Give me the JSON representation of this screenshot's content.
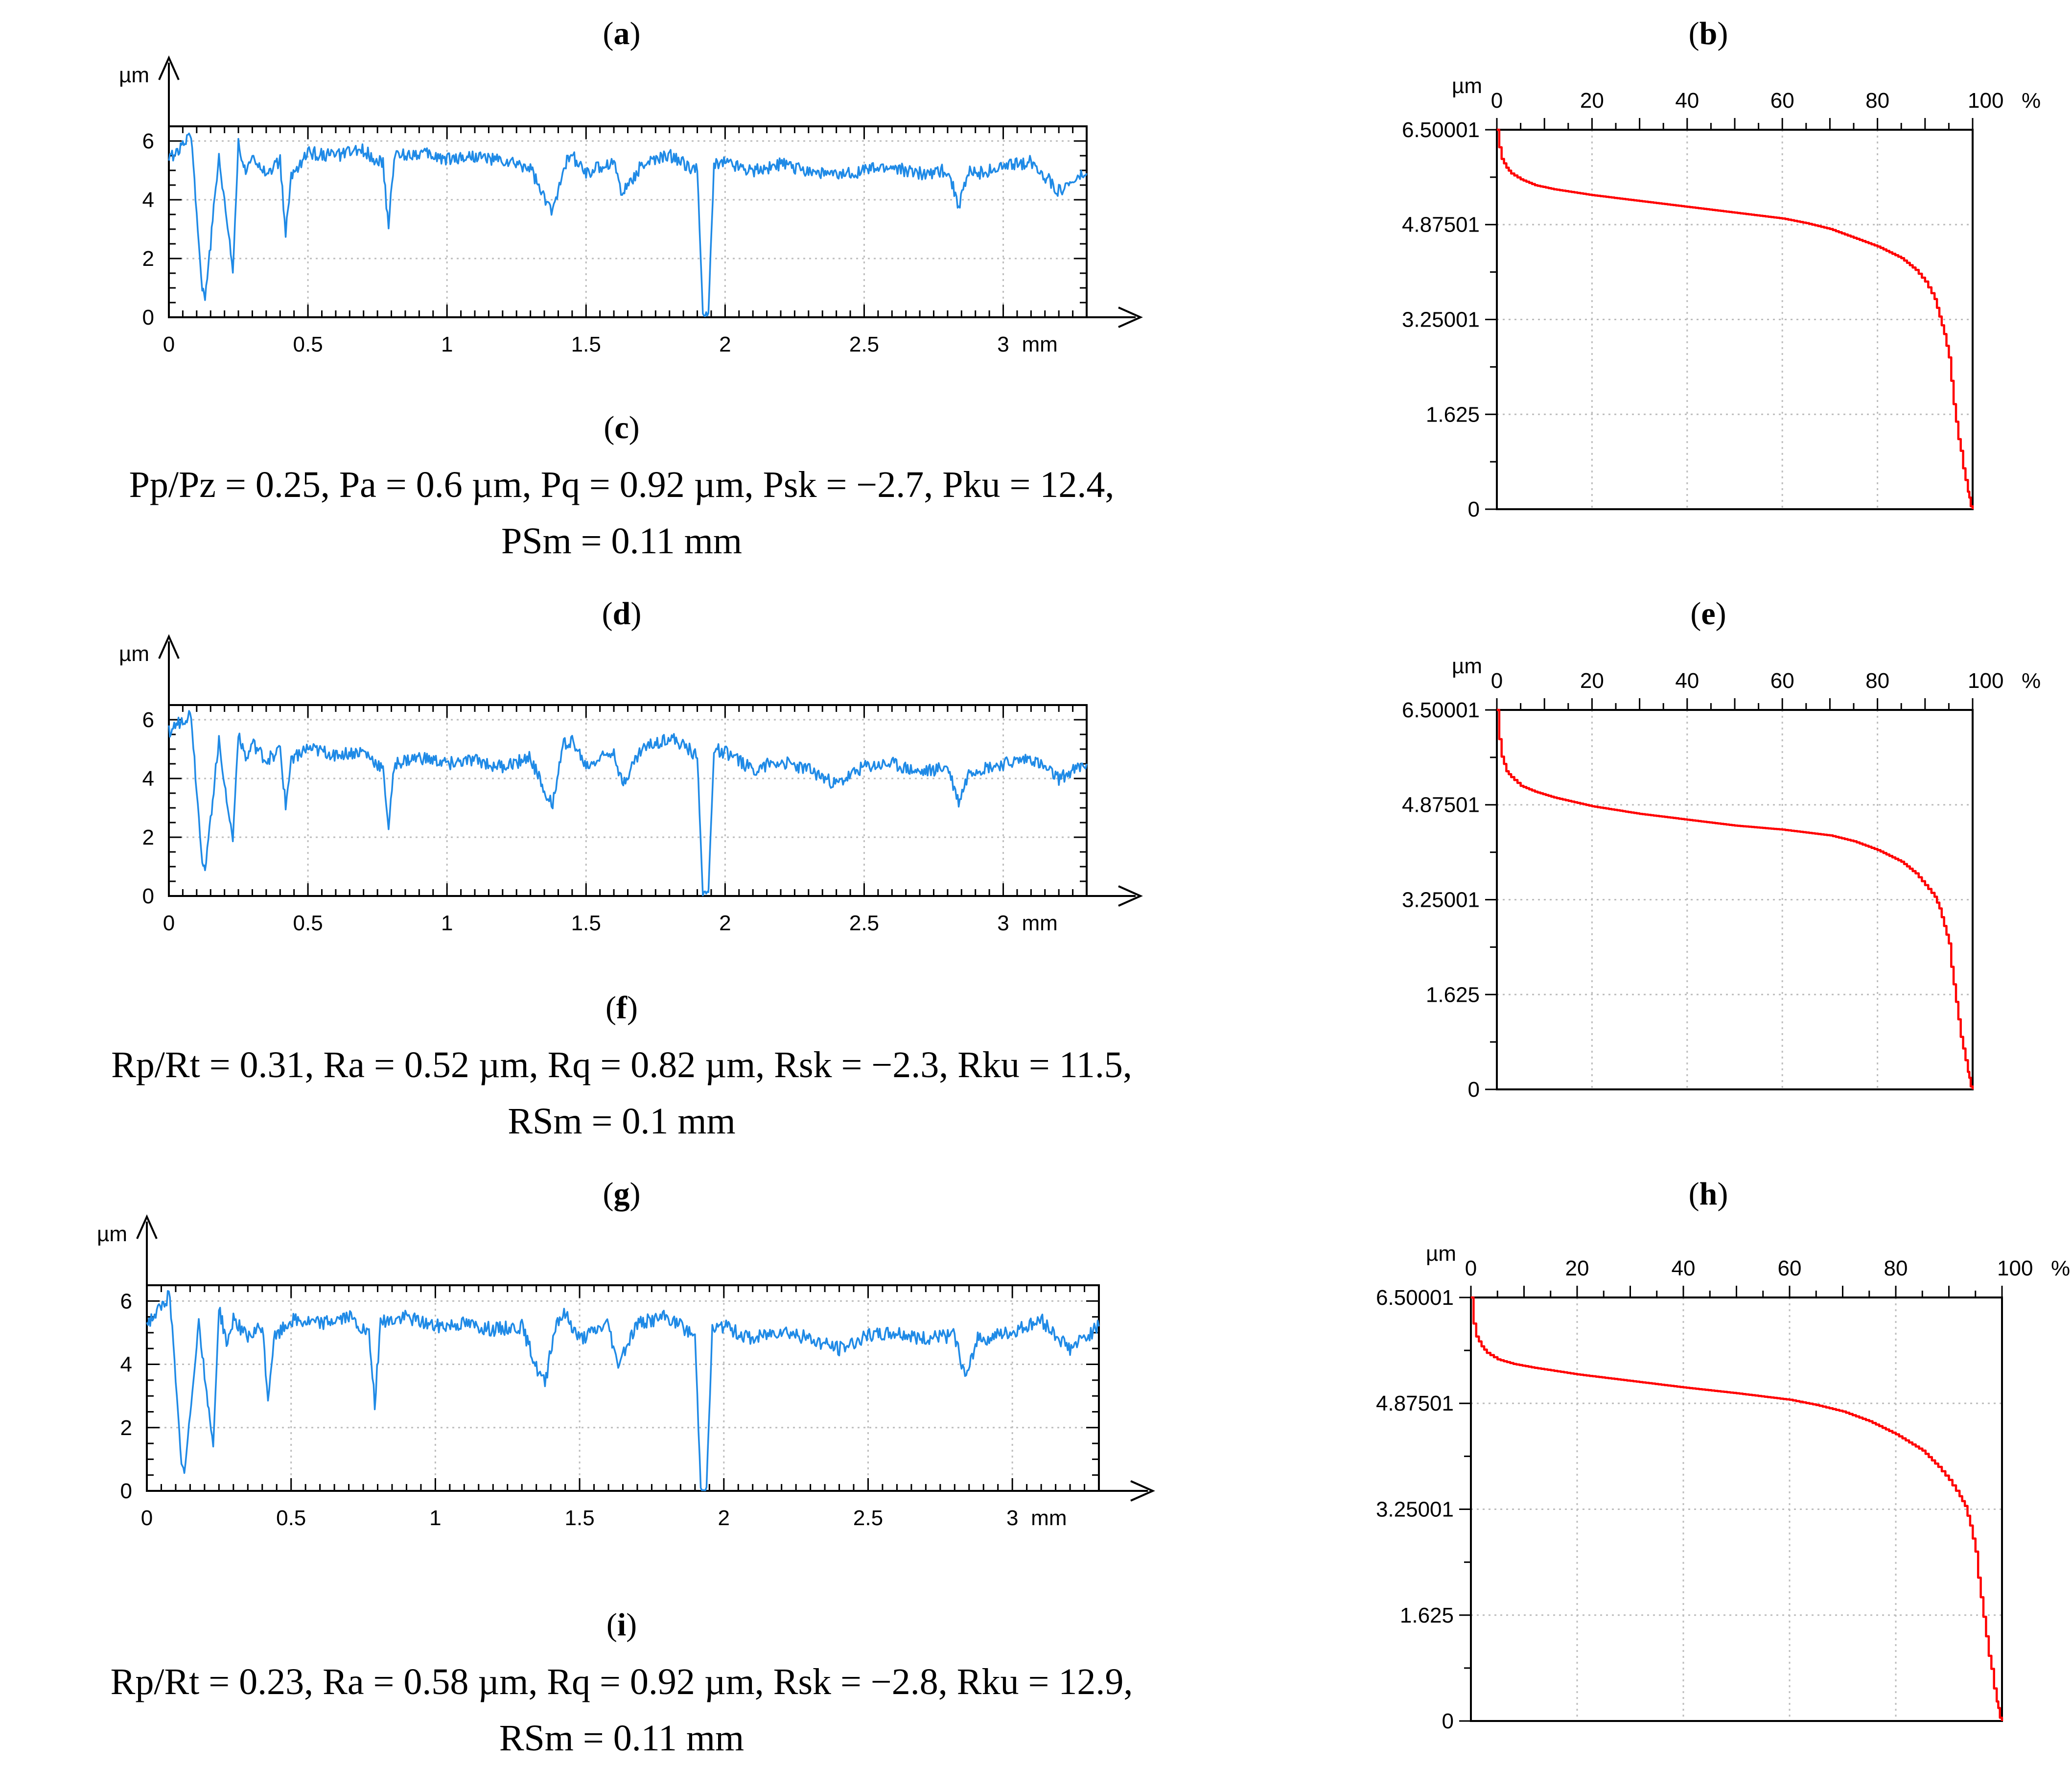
{
  "colors": {
    "profile": "#1f8ae6",
    "bearing": "#ff0000",
    "grid": "#bdbdbd",
    "axis": "#000000"
  },
  "panels": {
    "a": "a",
    "b": "b",
    "c": "c",
    "d": "d",
    "e": "e",
    "f": "f",
    "g": "g",
    "h": "h",
    "i": "i"
  },
  "stats": {
    "c": {
      "line1": "Pp/Pz = 0.25, Pa = 0.6 µm, Pq = 0.92 µm, Psk = −2.7, Pku = 12.4,",
      "line2": "PSm = 0.11 mm"
    },
    "f": {
      "line1": "Rp/Rt = 0.31, Ra = 0.52 µm, Rq = 0.82 µm, Rsk = −2.3, Rku = 11.5,",
      "line2": "RSm = 0.1 mm"
    },
    "i": {
      "line1": "Rp/Rt = 0.23, Ra = 0.58 µm, Rq = 0.92 µm, Rsk = −2.8, Rku = 12.9,",
      "line2": "RSm = 0.11 mm"
    }
  },
  "chart_data": [
    {
      "id": "a",
      "type": "line",
      "title": "",
      "xlabel": "mm",
      "ylabel": "µm",
      "xlim": [
        0,
        3.3
      ],
      "ylim": [
        0,
        6.5
      ],
      "xticks": [
        "0",
        "0.5",
        "1",
        "1.5",
        "2",
        "2.5",
        "3"
      ],
      "yticks": [
        "0",
        "2",
        "4",
        "6"
      ],
      "series": [
        {
          "name": "profile",
          "x": [
            0,
            0.05,
            0.08,
            0.1,
            0.12,
            0.13,
            0.15,
            0.18,
            0.2,
            0.23,
            0.25,
            0.28,
            0.3,
            0.35,
            0.4,
            0.42,
            0.44,
            0.5,
            0.6,
            0.7,
            0.77,
            0.79,
            0.81,
            0.9,
            1.0,
            1.1,
            1.2,
            1.3,
            1.35,
            1.38,
            1.42,
            1.45,
            1.5,
            1.6,
            1.63,
            1.7,
            1.8,
            1.9,
            1.92,
            1.94,
            1.96,
            2.0,
            2.1,
            2.2,
            2.3,
            2.4,
            2.5,
            2.6,
            2.7,
            2.8,
            2.84,
            2.88,
            2.9,
            3.0,
            3.1,
            3.2,
            3.3
          ],
          "y": [
            5.4,
            5.8,
            6.3,
            3.5,
            1.0,
            0.7,
            2.5,
            5.5,
            4.0,
            1.6,
            5.9,
            4.8,
            5.6,
            4.9,
            5.3,
            2.8,
            4.8,
            5.6,
            5.5,
            5.7,
            5.2,
            3.0,
            5.5,
            5.6,
            5.4,
            5.5,
            5.3,
            5.1,
            4.0,
            3.6,
            5.2,
            5.5,
            4.9,
            5.3,
            4.2,
            5.2,
            5.5,
            5.0,
            0.1,
            0.1,
            5.2,
            5.3,
            5.0,
            5.2,
            5.0,
            4.8,
            5.0,
            5.1,
            4.9,
            5.0,
            3.8,
            5.0,
            4.9,
            5.1,
            5.3,
            4.3,
            4.9
          ]
        }
      ]
    },
    {
      "id": "b",
      "type": "line",
      "title": "",
      "xlabel": "%",
      "ylabel": "µm",
      "xlim": [
        0,
        100
      ],
      "ylim": [
        0,
        6.50001
      ],
      "xticks": [
        "0",
        "20",
        "40",
        "60",
        "80",
        "100"
      ],
      "yticks": [
        "0",
        "1.625",
        "3.25001",
        "4.87501",
        "6.50001"
      ],
      "series": [
        {
          "name": "bearing curve",
          "x": [
            0,
            0.5,
            1,
            2,
            3,
            5,
            8,
            12,
            20,
            30,
            40,
            50,
            60,
            65,
            70,
            75,
            80,
            85,
            88,
            90,
            92,
            93,
            94,
            95,
            95.5,
            96,
            96.5,
            97,
            97.5,
            98,
            98.5,
            99,
            99.3,
            99.6,
            100
          ],
          "y": [
            6.5,
            6.2,
            6.0,
            5.85,
            5.75,
            5.65,
            5.55,
            5.48,
            5.38,
            5.28,
            5.18,
            5.08,
            4.98,
            4.9,
            4.8,
            4.65,
            4.5,
            4.3,
            4.1,
            3.9,
            3.6,
            3.3,
            3.0,
            2.6,
            2.2,
            1.8,
            1.5,
            1.2,
            1.0,
            0.7,
            0.5,
            0.3,
            0.2,
            0.05,
            0
          ]
        }
      ]
    },
    {
      "id": "d",
      "type": "line",
      "title": "",
      "xlabel": "mm",
      "ylabel": "µm",
      "xlim": [
        0,
        3.3
      ],
      "ylim": [
        0,
        6.5
      ],
      "xticks": [
        "0",
        "0.5",
        "1",
        "1.5",
        "2",
        "2.5",
        "3"
      ],
      "yticks": [
        "0",
        "2",
        "4",
        "6"
      ],
      "series": [
        {
          "name": "profile",
          "x": [
            0,
            0.05,
            0.08,
            0.1,
            0.12,
            0.13,
            0.15,
            0.18,
            0.2,
            0.23,
            0.25,
            0.28,
            0.3,
            0.35,
            0.4,
            0.42,
            0.44,
            0.5,
            0.6,
            0.7,
            0.77,
            0.79,
            0.81,
            0.9,
            1.0,
            1.1,
            1.2,
            1.3,
            1.35,
            1.38,
            1.42,
            1.45,
            1.5,
            1.6,
            1.63,
            1.7,
            1.8,
            1.9,
            1.92,
            1.94,
            1.96,
            2.0,
            2.1,
            2.2,
            2.3,
            2.4,
            2.5,
            2.6,
            2.7,
            2.8,
            2.84,
            2.88,
            2.9,
            3.0,
            3.1,
            3.2,
            3.3
          ],
          "y": [
            5.6,
            6.0,
            6.2,
            3.6,
            1.2,
            0.9,
            2.6,
            5.4,
            3.8,
            1.9,
            5.6,
            4.6,
            5.2,
            4.6,
            5.0,
            3.0,
            4.7,
            5.0,
            4.8,
            4.9,
            4.3,
            2.3,
            4.5,
            4.7,
            4.5,
            4.6,
            4.4,
            4.7,
            3.6,
            3.2,
            5.2,
            5.3,
            4.4,
            5.0,
            3.8,
            5.0,
            5.4,
            4.8,
            0.1,
            0.1,
            5.0,
            4.9,
            4.3,
            4.6,
            4.3,
            3.8,
            4.4,
            4.5,
            4.2,
            4.4,
            3.2,
            4.3,
            4.3,
            4.5,
            4.7,
            4.0,
            4.5
          ]
        }
      ]
    },
    {
      "id": "e",
      "type": "line",
      "title": "",
      "xlabel": "%",
      "ylabel": "µm",
      "xlim": [
        0,
        100
      ],
      "ylim": [
        0,
        6.50001
      ],
      "xticks": [
        "0",
        "20",
        "40",
        "60",
        "80",
        "100"
      ],
      "yticks": [
        "0",
        "1.625",
        "3.25001",
        "4.87501",
        "6.50001"
      ],
      "series": [
        {
          "name": "bearing curve",
          "x": [
            0,
            0.5,
            1,
            2,
            3,
            5,
            8,
            12,
            20,
            30,
            40,
            50,
            60,
            65,
            70,
            75,
            80,
            85,
            88,
            90,
            92,
            93,
            94,
            95,
            95.5,
            96,
            96.5,
            97,
            97.5,
            98,
            98.5,
            99,
            99.3,
            99.6,
            100
          ],
          "y": [
            6.5,
            6.0,
            5.7,
            5.45,
            5.35,
            5.2,
            5.1,
            5.0,
            4.85,
            4.72,
            4.62,
            4.52,
            4.45,
            4.4,
            4.35,
            4.25,
            4.1,
            3.9,
            3.7,
            3.5,
            3.3,
            3.1,
            2.8,
            2.5,
            2.1,
            1.8,
            1.5,
            1.2,
            0.9,
            0.7,
            0.5,
            0.3,
            0.2,
            0.05,
            0
          ]
        }
      ]
    },
    {
      "id": "g",
      "type": "line",
      "title": "",
      "xlabel": "mm",
      "ylabel": "µm",
      "xlim": [
        0,
        3.3
      ],
      "ylim": [
        0,
        6.5
      ],
      "xticks": [
        "0",
        "0.5",
        "1",
        "1.5",
        "2",
        "2.5",
        "3"
      ],
      "yticks": [
        "0",
        "2",
        "4",
        "6"
      ],
      "series": [
        {
          "name": "profile",
          "x": [
            0,
            0.05,
            0.08,
            0.1,
            0.12,
            0.13,
            0.15,
            0.18,
            0.2,
            0.23,
            0.25,
            0.28,
            0.3,
            0.35,
            0.4,
            0.42,
            0.44,
            0.5,
            0.6,
            0.7,
            0.77,
            0.79,
            0.81,
            0.9,
            1.0,
            1.1,
            1.2,
            1.3,
            1.35,
            1.38,
            1.42,
            1.45,
            1.5,
            1.6,
            1.63,
            1.7,
            1.8,
            1.9,
            1.92,
            1.94,
            1.96,
            2.0,
            2.1,
            2.2,
            2.3,
            2.4,
            2.5,
            2.6,
            2.7,
            2.8,
            2.84,
            2.88,
            2.9,
            3.0,
            3.1,
            3.2,
            3.3
          ],
          "y": [
            5.3,
            5.8,
            6.2,
            3.4,
            0.9,
            0.5,
            2.4,
            5.4,
            3.6,
            1.4,
            5.8,
            4.6,
            5.5,
            4.8,
            5.2,
            2.9,
            4.8,
            5.4,
            5.3,
            5.5,
            4.9,
            2.7,
            5.3,
            5.5,
            5.2,
            5.3,
            5.1,
            5.2,
            3.9,
            3.4,
            5.4,
            5.6,
            4.8,
            5.3,
            4.0,
            5.3,
            5.5,
            4.9,
            0.1,
            0.1,
            5.1,
            5.2,
            4.8,
            5.1,
            4.8,
            4.5,
            4.9,
            5.0,
            4.8,
            4.9,
            3.5,
            4.9,
            4.8,
            5.0,
            5.4,
            4.5,
            5.2
          ]
        }
      ]
    },
    {
      "id": "h",
      "type": "line",
      "title": "",
      "xlabel": "%",
      "ylabel": "µm",
      "xlim": [
        0,
        100
      ],
      "ylim": [
        0,
        6.50001
      ],
      "xticks": [
        "0",
        "20",
        "40",
        "60",
        "80",
        "100"
      ],
      "yticks": [
        "0",
        "1.625",
        "3.25001",
        "4.87501",
        "6.50001"
      ],
      "series": [
        {
          "name": "bearing curve",
          "x": [
            0,
            0.5,
            1,
            2,
            3,
            5,
            8,
            12,
            20,
            30,
            40,
            50,
            60,
            65,
            70,
            75,
            80,
            85,
            88,
            90,
            92,
            93,
            94,
            95,
            95.5,
            96,
            96.5,
            97,
            97.5,
            98,
            98.5,
            99,
            99.3,
            99.6,
            100
          ],
          "y": [
            6.5,
            6.1,
            5.9,
            5.75,
            5.65,
            5.55,
            5.48,
            5.42,
            5.32,
            5.22,
            5.12,
            5.03,
            4.93,
            4.85,
            4.75,
            4.6,
            4.4,
            4.15,
            3.9,
            3.7,
            3.45,
            3.3,
            3.0,
            2.6,
            2.2,
            1.9,
            1.6,
            1.3,
            1.0,
            0.8,
            0.5,
            0.3,
            0.2,
            0.05,
            0
          ]
        }
      ]
    }
  ]
}
